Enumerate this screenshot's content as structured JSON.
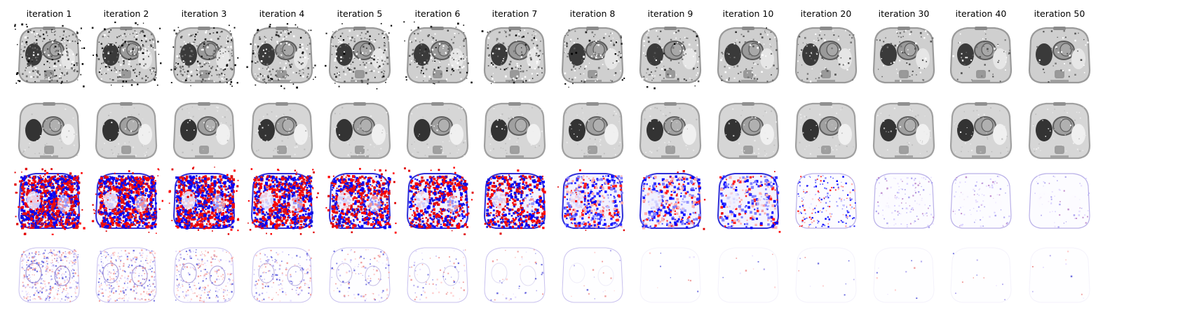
{
  "figure": {
    "columns": [
      {
        "label": "iteration 1"
      },
      {
        "label": "iteration 2"
      },
      {
        "label": "iteration 3"
      },
      {
        "label": "iteration 4"
      },
      {
        "label": "iteration 5"
      },
      {
        "label": "iteration 6"
      },
      {
        "label": "iteration 7"
      },
      {
        "label": "iteration 8"
      },
      {
        "label": "iteration 9"
      },
      {
        "label": "iteration 10"
      },
      {
        "label": "iteration 20"
      },
      {
        "label": "iteration 30"
      },
      {
        "label": "iteration 40"
      },
      {
        "label": "iteration 50"
      }
    ],
    "rows": [
      {
        "kind": "reconstruction-noisy"
      },
      {
        "kind": "reconstruction-smooth"
      },
      {
        "kind": "difference-map"
      },
      {
        "kind": "update-map"
      }
    ]
  }
}
